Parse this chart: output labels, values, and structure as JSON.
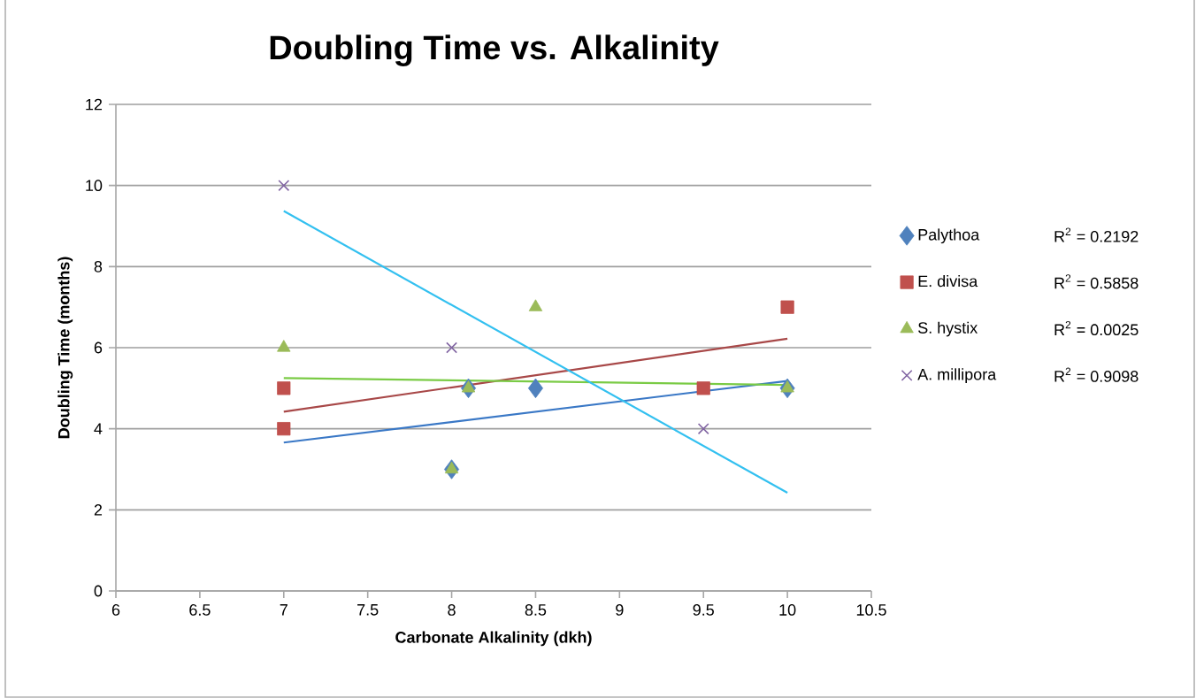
{
  "chart_data": {
    "type": "scatter",
    "title": "Doubling Time vs. Alkalinity",
    "xlabel": "Carbonate Alkalinity (dkh)",
    "ylabel": "Doubling Time (months)",
    "xlim": [
      6,
      10.5
    ],
    "xticks": [
      6,
      6.5,
      7,
      7.5,
      8,
      8.5,
      9,
      9.5,
      10,
      10.5
    ],
    "ylim": [
      0,
      12
    ],
    "yticks": [
      0,
      2,
      4,
      6,
      8,
      10,
      12
    ],
    "grid": "y",
    "legend": "right",
    "series": [
      {
        "name": "Palythoa",
        "color": "#4f81bd",
        "marker": "diamond",
        "x": [
          8,
          8.1,
          8.5,
          10
        ],
        "values": [
          3,
          5,
          5,
          5
        ]
      },
      {
        "name": "E. divisa",
        "color": "#c0504d",
        "marker": "square",
        "x": [
          7,
          7,
          9.5,
          10
        ],
        "values": [
          5,
          4,
          5,
          7
        ]
      },
      {
        "name": "S. hystix",
        "color": "#9bbb59",
        "marker": "triangle",
        "x": [
          7,
          8,
          8.1,
          8.5,
          10
        ],
        "values": [
          6,
          3,
          5,
          7,
          5
        ]
      },
      {
        "name": "A. millipora",
        "color": "#8064a2",
        "marker": "cross",
        "x": [
          7,
          8,
          9.5
        ],
        "values": [
          10,
          6,
          4
        ]
      },
      {
        "type": "line",
        "color": "#3a78c6",
        "marker": "none",
        "x": [
          7,
          10
        ],
        "values": [
          3.66,
          5.18
        ]
      },
      {
        "type": "line",
        "color": "#a84848",
        "marker": "none",
        "x": [
          7,
          10
        ],
        "values": [
          4.42,
          6.22
        ]
      },
      {
        "type": "line",
        "color": "#7acb45",
        "marker": "none",
        "x": [
          7,
          10
        ],
        "values": [
          5.25,
          5.08
        ]
      },
      {
        "type": "line",
        "color": "#33c0f0",
        "marker": "none",
        "x": [
          7,
          10
        ],
        "values": [
          9.37,
          2.42
        ]
      }
    ],
    "annotations": [
      "R$^{2}$ = 0.2192",
      "R$^{2}$ = 0.5858",
      "R$^{2}$ = 0.0025",
      "R$^{2}$ = 0.9098"
    ]
  }
}
